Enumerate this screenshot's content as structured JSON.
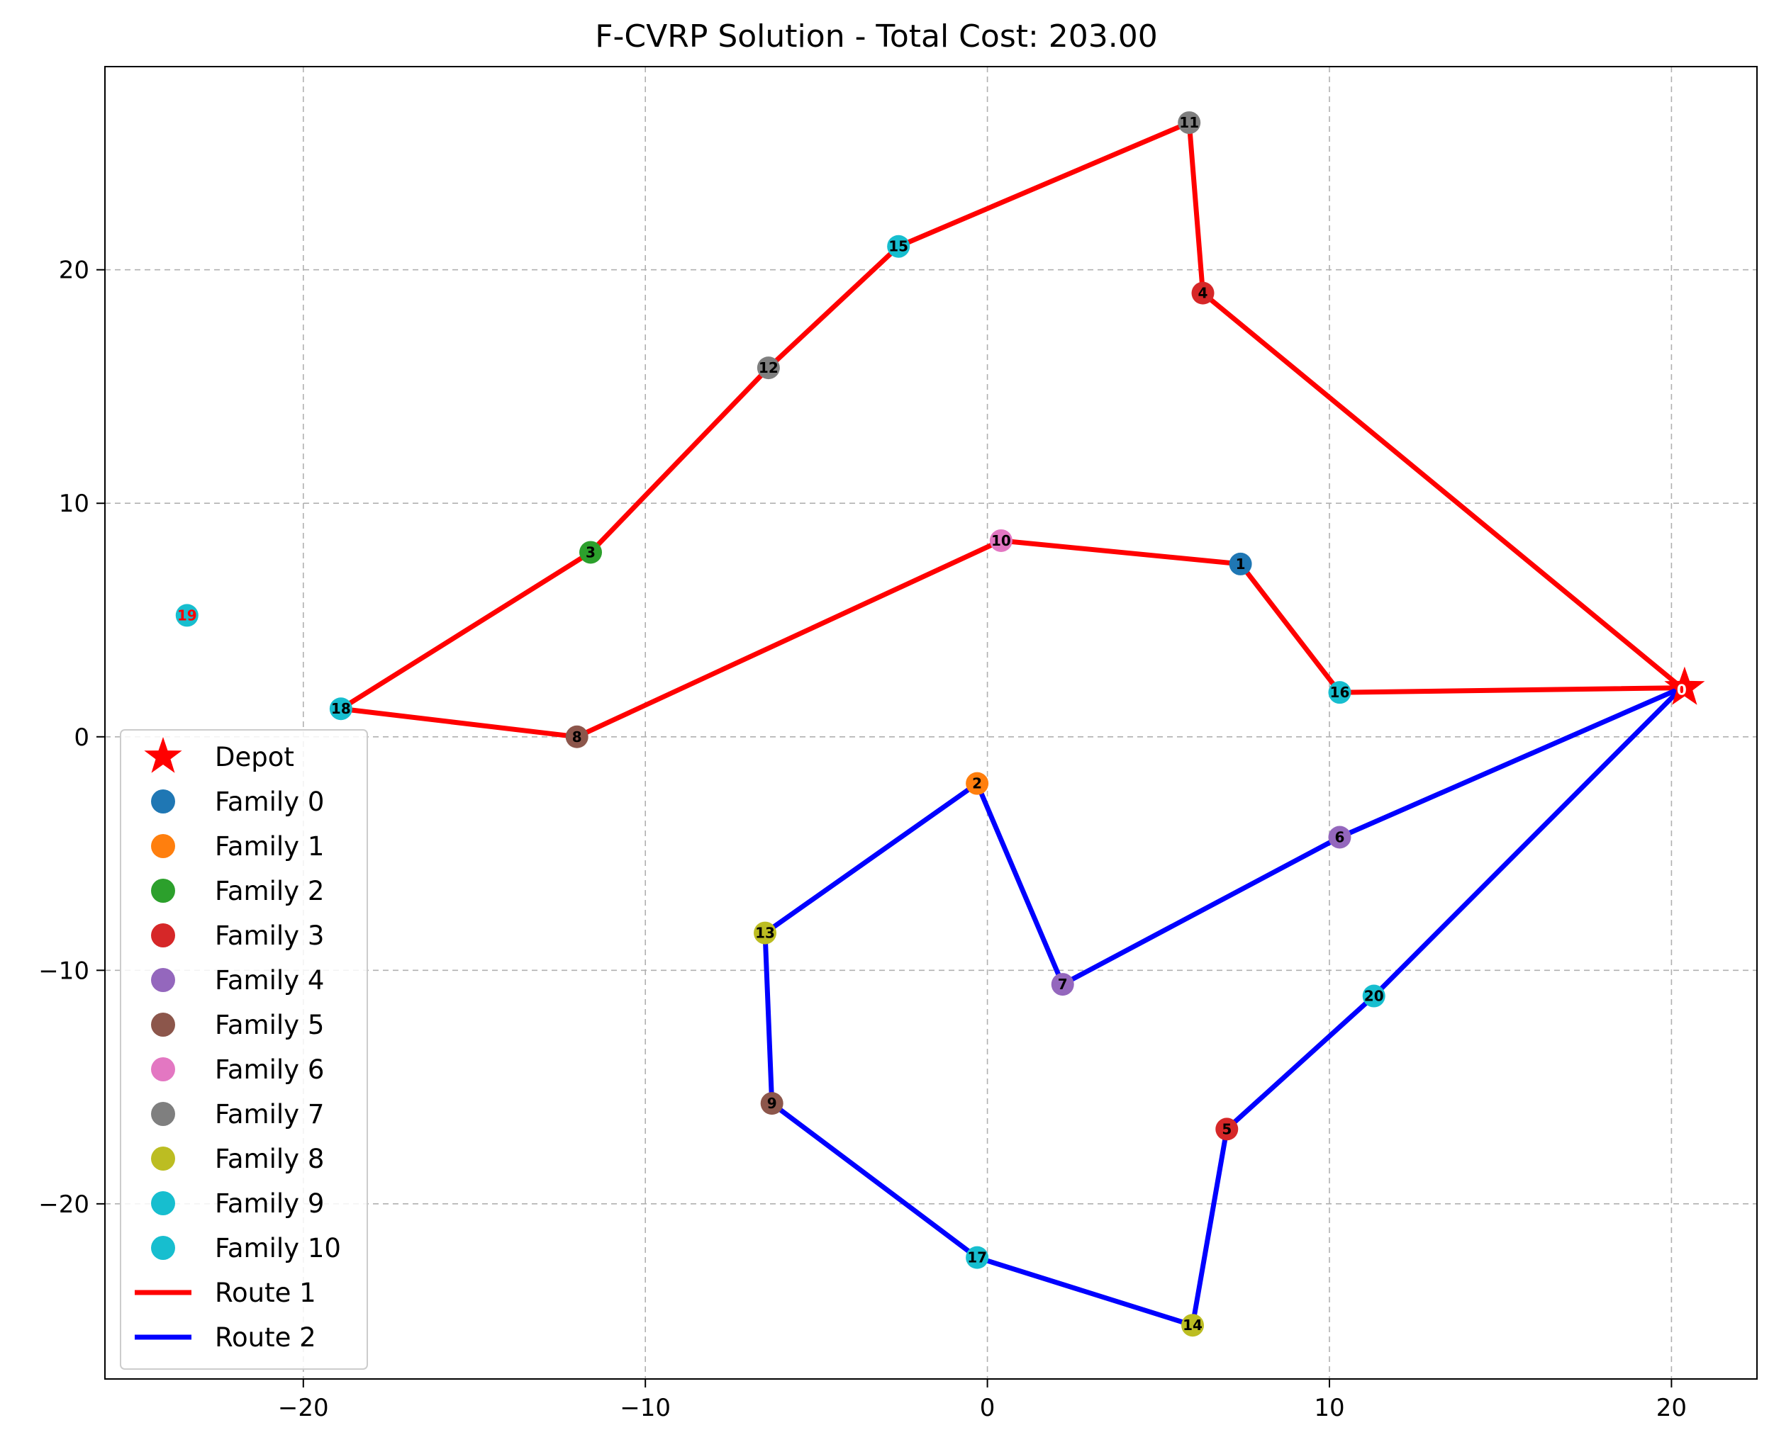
{
  "chart_data": {
    "type": "scatter",
    "title": "F-CVRP Solution - Total Cost: 203.00",
    "xlabel": "",
    "ylabel": "",
    "xlim": [
      -25.8,
      22.5
    ],
    "ylim": [
      -27.5,
      28.7
    ],
    "xticks": [
      -20,
      -10,
      0,
      10,
      20
    ],
    "yticks": [
      -20,
      -10,
      0,
      10,
      20
    ],
    "xtick_labels": [
      "−20",
      "−10",
      "0",
      "10",
      "20"
    ],
    "ytick_labels": [
      "−20",
      "−10",
      "0",
      "10",
      "20"
    ],
    "grid": true,
    "legend_position": "lower-left",
    "depot": {
      "id": 0,
      "label": "0",
      "x": 20.3,
      "y": 2.1,
      "color": "#ff0000",
      "legend": "Depot"
    },
    "families": [
      {
        "name": "Family 0",
        "color": "#1f77b4"
      },
      {
        "name": "Family 1",
        "color": "#ff7f0e"
      },
      {
        "name": "Family 2",
        "color": "#2ca02c"
      },
      {
        "name": "Family 3",
        "color": "#d62728"
      },
      {
        "name": "Family 4",
        "color": "#9467bd"
      },
      {
        "name": "Family 5",
        "color": "#8c564b"
      },
      {
        "name": "Family 6",
        "color": "#e377c2"
      },
      {
        "name": "Family 7",
        "color": "#7f7f7f"
      },
      {
        "name": "Family 8",
        "color": "#bcbd22"
      },
      {
        "name": "Family 9",
        "color": "#17becf"
      },
      {
        "name": "Family 10",
        "color": "#17becf"
      }
    ],
    "nodes": [
      {
        "id": 1,
        "label": "1",
        "x": 7.4,
        "y": 7.4,
        "family": 0
      },
      {
        "id": 2,
        "label": "2",
        "x": -0.3,
        "y": -2.0,
        "family": 1
      },
      {
        "id": 3,
        "label": "3",
        "x": -11.6,
        "y": 7.9,
        "family": 2
      },
      {
        "id": 4,
        "label": "4",
        "x": 6.3,
        "y": 19.0,
        "family": 3
      },
      {
        "id": 5,
        "label": "5",
        "x": 7.0,
        "y": -16.8,
        "family": 3
      },
      {
        "id": 6,
        "label": "6",
        "x": 10.3,
        "y": -4.3,
        "family": 4
      },
      {
        "id": 7,
        "label": "7",
        "x": 2.2,
        "y": -10.6,
        "family": 4
      },
      {
        "id": 8,
        "label": "8",
        "x": -12.0,
        "y": 0.0,
        "family": 5
      },
      {
        "id": 9,
        "label": "9",
        "x": -6.3,
        "y": -15.7,
        "family": 5
      },
      {
        "id": 10,
        "label": "10",
        "x": 0.4,
        "y": 8.4,
        "family": 6
      },
      {
        "id": 11,
        "label": "11",
        "x": 5.9,
        "y": 26.3,
        "family": 7
      },
      {
        "id": 12,
        "label": "12",
        "x": -6.4,
        "y": 15.8,
        "family": 7
      },
      {
        "id": 13,
        "label": "13",
        "x": -6.5,
        "y": -8.4,
        "family": 8
      },
      {
        "id": 14,
        "label": "14",
        "x": 6.0,
        "y": -25.2,
        "family": 8
      },
      {
        "id": 15,
        "label": "15",
        "x": -2.6,
        "y": 21.0,
        "family": 9
      },
      {
        "id": 16,
        "label": "16",
        "x": 10.3,
        "y": 1.9,
        "family": 9
      },
      {
        "id": 17,
        "label": "17",
        "x": -0.3,
        "y": -22.3,
        "family": 9
      },
      {
        "id": 18,
        "label": "18",
        "x": -18.9,
        "y": 1.2,
        "family": 9
      },
      {
        "id": 19,
        "label": "19",
        "x": -23.4,
        "y": 5.2,
        "family": 10,
        "label_color": "#ff0000"
      },
      {
        "id": 20,
        "label": "20",
        "x": 11.3,
        "y": -11.1,
        "family": 9
      }
    ],
    "routes": [
      {
        "name": "Route 1",
        "color": "#ff0000",
        "path": [
          0,
          4,
          11,
          15,
          12,
          3,
          18,
          8,
          10,
          1,
          16,
          0
        ]
      },
      {
        "name": "Route 2",
        "color": "#0000ff",
        "path": [
          0,
          6,
          7,
          2,
          13,
          9,
          17,
          14,
          5,
          20,
          0
        ]
      }
    ]
  }
}
